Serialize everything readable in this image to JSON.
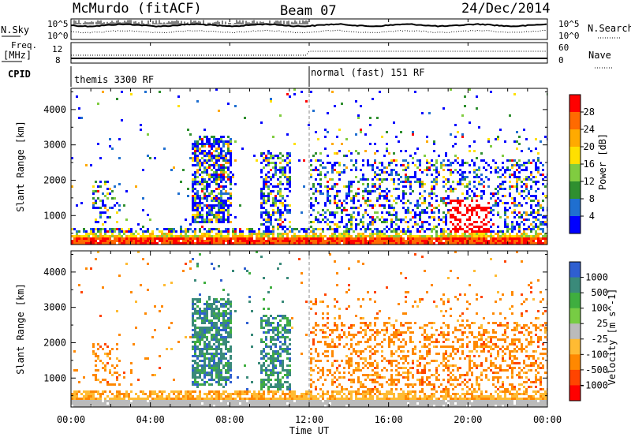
{
  "header": {
    "station": "McMurdo (fitACF)",
    "beam": "Beam 07",
    "date": "24/Dec/2014"
  },
  "strip_labels": {
    "nsky": "N.Sky",
    "nsearch": "N.Search",
    "freq_line1": "Freq.",
    "freq_line2": "[MHz]",
    "nave": "Nave",
    "cpid": "CPID",
    "nsky_ticks": [
      "10^5",
      "10^0"
    ],
    "nsearch_ticks": [
      "10^5",
      "10^0"
    ],
    "freq_ticks": [
      "12",
      "8"
    ],
    "nave_ticks": [
      "60",
      "0"
    ]
  },
  "cpid_segments": [
    {
      "label": "themis 3300 RF",
      "start_hour": 0
    },
    {
      "label": "normal (fast) 151 RF",
      "start_hour": 12
    }
  ],
  "chart_data": [
    {
      "type": "heatmap",
      "name": "power",
      "ylabel": "Slant Range [km]",
      "colorbar_label": "Power [dB]",
      "colorbar_ticks": [
        "28",
        "24",
        "20",
        "16",
        "12",
        "8",
        "4"
      ],
      "colorbar_colors": [
        "#ff0000",
        "#ff6a00",
        "#ffaa00",
        "#ffe000",
        "#80cc40",
        "#2f8f2f",
        "#1f6fd0",
        "#0000ff"
      ],
      "y_ticks": [
        "4000",
        "3000",
        "2000",
        "1000"
      ],
      "ylim": [
        180,
        4600
      ],
      "xlim": [
        0,
        24
      ]
    },
    {
      "type": "heatmap",
      "name": "velocity",
      "ylabel": "Slant Range [km]",
      "colorbar_label": "Velocity [m s^-1]",
      "colorbar_ticks": [
        "1000",
        "500",
        "100",
        "25",
        "-25",
        "-100",
        "-500",
        "-1000"
      ],
      "colorbar_colors": [
        "#2f5fd0",
        "#3a8a7a",
        "#3fae3f",
        "#77cc44",
        "#bbbbbb",
        "#ffbb33",
        "#ff8800",
        "#ff4400",
        "#ff0000"
      ],
      "y_ticks": [
        "4000",
        "3000",
        "2000",
        "1000"
      ],
      "ylim": [
        180,
        4600
      ],
      "xlim": [
        0,
        24
      ]
    }
  ],
  "x_axis": {
    "ticks": [
      "00:00",
      "04:00",
      "08:00",
      "12:00",
      "16:00",
      "20:00",
      "00:00"
    ],
    "label": "Time UT"
  }
}
